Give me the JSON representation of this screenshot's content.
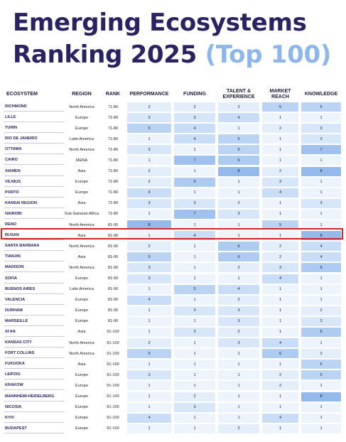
{
  "title": {
    "line1": "Emerging Ecosystems",
    "line2_main": "Ranking 2025",
    "line2_accent": "(Top 100)"
  },
  "headers": {
    "ecosystem": "ECOSYSTEM",
    "region": "REGION",
    "rank": "RANK",
    "performance": "PERFORMANCE",
    "funding": "FUNDING",
    "talent": "TALENT & EXPERIENCE",
    "market": "MARKET REACH",
    "knowledge": "KNOWLEDGE"
  },
  "highlighted_row": "BUSAN",
  "color_scale": [
    "#eef4fc",
    "#e4eefb",
    "#d7e6f9",
    "#c9ddf6",
    "#bcd4f4",
    "#aecbf1",
    "#a1c2ee",
    "#94b9eb"
  ],
  "rows": [
    {
      "eco": "RICHMOND",
      "region": "North America",
      "rank": "71-80",
      "perf": 2,
      "fund": 2,
      "tal": 2,
      "mkt": 5,
      "kno": 5
    },
    {
      "eco": "LILLE",
      "region": "Europe",
      "rank": "71-80",
      "perf": 3,
      "fund": 3,
      "tal": 4,
      "mkt": 1,
      "kno": 1
    },
    {
      "eco": "TURIN",
      "region": "Europe",
      "rank": "71-80",
      "perf": 5,
      "fund": 4,
      "tal": 1,
      "mkt": 2,
      "kno": 3
    },
    {
      "eco": "RIO DE JANEIRO",
      "region": "Latin America",
      "rank": "71-80",
      "perf": 1,
      "fund": 4,
      "tal": 5,
      "mkt": 1,
      "kno": 3
    },
    {
      "eco": "OTTAWA",
      "region": "North America",
      "rank": "71-80",
      "perf": 3,
      "fund": 1,
      "tal": 5,
      "mkt": 1,
      "kno": 7
    },
    {
      "eco": "CAIRO",
      "region": "MENA",
      "rank": "71-80",
      "perf": 1,
      "fund": 7,
      "tal": 6,
      "mkt": 1,
      "kno": 1
    },
    {
      "eco": "XIAMEN",
      "region": "Asia",
      "rank": "71-80",
      "perf": 2,
      "fund": 1,
      "tal": 8,
      "mkt": 2,
      "kno": 8
    },
    {
      "eco": "VILNIUS",
      "region": "Europe",
      "rank": "71-80",
      "perf": 2,
      "fund": 6,
      "tal": 1,
      "mkt": 3,
      "kno": 1
    },
    {
      "eco": "PORTO",
      "region": "Europe",
      "rank": "71-80",
      "perf": 4,
      "fund": 1,
      "tal": 1,
      "mkt": 4,
      "kno": 1
    },
    {
      "eco": "KANSAI REGION",
      "region": "Asia",
      "rank": "71-80",
      "perf": 3,
      "fund": 3,
      "tal": 2,
      "mkt": 1,
      "kno": 3
    },
    {
      "eco": "NAIROBI",
      "region": "Sub-Saharan Africa",
      "rank": "71-80",
      "perf": 1,
      "fund": 7,
      "tal": 3,
      "mkt": 1,
      "kno": 1
    },
    {
      "eco": "RENO",
      "region": "North America",
      "rank": "81-90",
      "perf": 8,
      "fund": 1,
      "tal": 1,
      "mkt": 5,
      "kno": 1
    },
    {
      "eco": "BUSAN",
      "region": "Asia",
      "rank": "81-90",
      "perf": 1,
      "fund": 4,
      "tal": 1,
      "mkt": 1,
      "kno": 8
    },
    {
      "eco": "SANTA BARBARA",
      "region": "North America",
      "rank": "81-90",
      "perf": 2,
      "fund": 1,
      "tal": 6,
      "mkt": 2,
      "kno": 4
    },
    {
      "eco": "TIANJIN",
      "region": "Asia",
      "rank": "81-90",
      "perf": 5,
      "fund": 1,
      "tal": 6,
      "mkt": 2,
      "kno": 4
    },
    {
      "eco": "MADISON",
      "region": "North America",
      "rank": "81-90",
      "perf": 3,
      "fund": 1,
      "tal": 2,
      "mkt": 3,
      "kno": 6
    },
    {
      "eco": "SOFIA",
      "region": "Europe",
      "rank": "81-90",
      "perf": 3,
      "fund": 1,
      "tal": 1,
      "mkt": 4,
      "kno": 1
    },
    {
      "eco": "BUENOS AIRES",
      "region": "Latin America",
      "rank": "81-90",
      "perf": 1,
      "fund": 5,
      "tal": 4,
      "mkt": 1,
      "kno": 1
    },
    {
      "eco": "VALENCIA",
      "region": "Europe",
      "rank": "81-90",
      "perf": 4,
      "fund": 1,
      "tal": 2,
      "mkt": 1,
      "kno": 1
    },
    {
      "eco": "DURHAM",
      "region": "Europe",
      "rank": "81-90",
      "perf": 1,
      "fund": 3,
      "tal": 3,
      "mkt": 1,
      "kno": 2
    },
    {
      "eco": "MARSEILLE",
      "region": "Europe",
      "rank": "81-90",
      "perf": 1,
      "fund": 1,
      "tal": 3,
      "mkt": 1,
      "kno": 3
    },
    {
      "eco": "XI'AN",
      "region": "Asia",
      "rank": "91-100",
      "perf": 1,
      "fund": 3,
      "tal": 2,
      "mkt": 1,
      "kno": 6
    },
    {
      "eco": "KANSAS CITY",
      "region": "North America",
      "rank": "91-100",
      "perf": 2,
      "fund": 1,
      "tal": 3,
      "mkt": 4,
      "kno": 1
    },
    {
      "eco": "FORT COLLINS",
      "region": "North America",
      "rank": "91-100",
      "perf": 5,
      "fund": 1,
      "tal": 1,
      "mkt": 6,
      "kno": 2
    },
    {
      "eco": "FUKUOKA",
      "region": "Asia",
      "rank": "91-100",
      "perf": 1,
      "fund": 1,
      "tal": 1,
      "mkt": 1,
      "kno": 5
    },
    {
      "eco": "LEIPZIG",
      "region": "Europe",
      "rank": "91-100",
      "perf": 3,
      "fund": 1,
      "tal": 1,
      "mkt": 2,
      "kno": 5
    },
    {
      "eco": "KRAKOW",
      "region": "Europe",
      "rank": "91-100",
      "perf": 1,
      "fund": 1,
      "tal": 1,
      "mkt": 2,
      "kno": 1
    },
    {
      "eco": "MANNHEIM-HEIDELBERG",
      "region": "Europe",
      "rank": "91-100",
      "perf": 1,
      "fund": 2,
      "tal": 1,
      "mkt": 1,
      "kno": 8
    },
    {
      "eco": "NICOSIA",
      "region": "Europe",
      "rank": "91-100",
      "perf": 1,
      "fund": 3,
      "tal": 1,
      "mkt": 1,
      "kno": 1
    },
    {
      "eco": "KYIV",
      "region": "Europe",
      "rank": "91-100",
      "perf": 4,
      "fund": 1,
      "tal": 1,
      "mkt": 4,
      "kno": 1
    },
    {
      "eco": "BUDAPEST",
      "region": "Europe",
      "rank": "91-100",
      "perf": 1,
      "fund": 1,
      "tal": 2,
      "mkt": 1,
      "kno": 1
    }
  ]
}
